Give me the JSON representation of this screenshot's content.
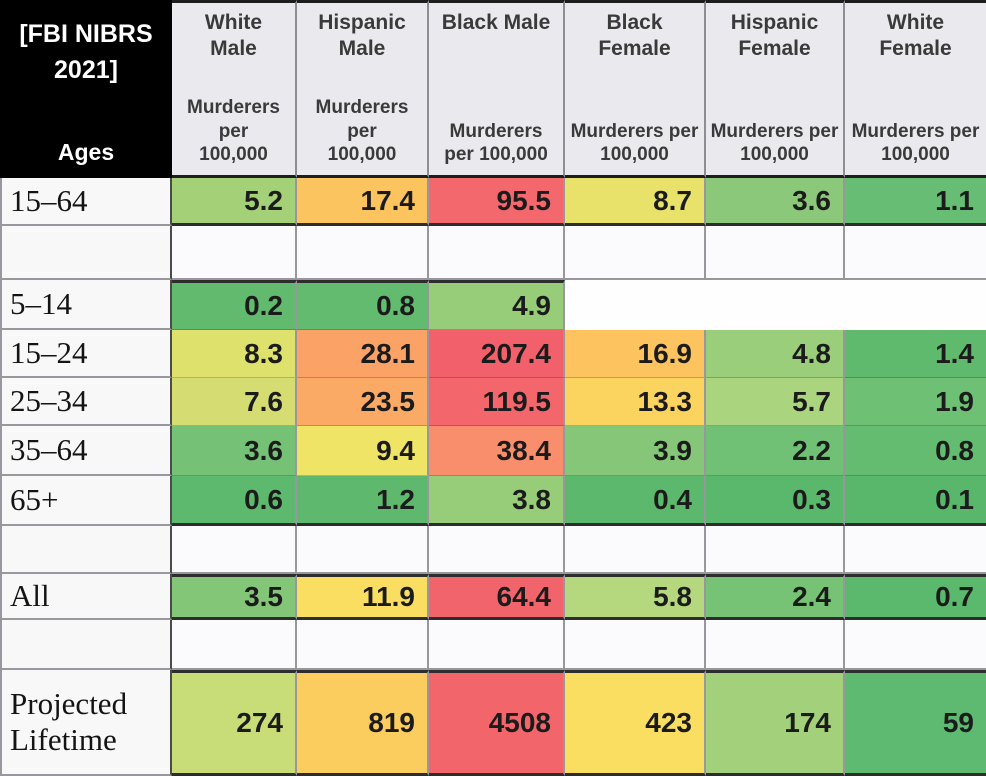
{
  "colors": {
    "corner_bg": "#000000",
    "corner_text": "#ffffff",
    "header_bg": "#eaeaee",
    "grid_line": "#97979d",
    "dark_divider": "#2d2d2d",
    "scale_green": "#5db96d",
    "scale_yellow": "#fade61",
    "scale_orange": "#fba367",
    "scale_red": "#f2606b"
  },
  "chart_data": {
    "type": "table",
    "title": "[FBI NIBRS 2021]",
    "row_header_label": "Ages",
    "unit_label": "Murderers per 100,000",
    "columns": [
      {
        "label": "White Male",
        "unit": "Murderers per 100,000"
      },
      {
        "label": "Hispanic Male",
        "unit": "Murderers per 100,000"
      },
      {
        "label": "Black Male",
        "unit": "Murderers per 100,000"
      },
      {
        "label": "Black Female",
        "unit": "Murderers per 100,000"
      },
      {
        "label": "Hispanic Female",
        "unit": "Murderers per 100,000"
      },
      {
        "label": "White Female",
        "unit": "Murderers per 100,000"
      }
    ],
    "rows": [
      {
        "type": "data",
        "label": "15–64",
        "values": [
          "5.2",
          "17.4",
          "95.5",
          "8.7",
          "3.6",
          "1.1"
        ],
        "colors": [
          "#a4d077",
          "#fcc45e",
          "#f2686c",
          "#e9e26a",
          "#8bc87a",
          "#67bd73"
        ]
      },
      {
        "type": "spacer",
        "label": ""
      },
      {
        "type": "data",
        "label": "5–14",
        "values": [
          "0.2",
          "0.8",
          "4.9",
          null,
          null,
          null
        ],
        "colors": [
          "#61ba6e",
          "#62bb6f",
          "#97cc79",
          null,
          null,
          null
        ]
      },
      {
        "type": "data",
        "label": "15–24",
        "values": [
          "8.3",
          "28.1",
          "207.4",
          "16.9",
          "4.8",
          "1.4"
        ],
        "colors": [
          "#dfe16d",
          "#fba367",
          "#f2606b",
          "#fcc35e",
          "#9bce7a",
          "#60ba6e"
        ]
      },
      {
        "type": "data",
        "label": "25–34",
        "values": [
          "7.6",
          "23.5",
          "119.5",
          "13.3",
          "5.7",
          "1.9"
        ],
        "colors": [
          "#d5dd72",
          "#fbaa66",
          "#f2666c",
          "#fbd45f",
          "#aad47d",
          "#6ec074"
        ]
      },
      {
        "type": "data",
        "label": "35–64",
        "values": [
          "3.6",
          "9.4",
          "38.4",
          "3.9",
          "2.2",
          "0.8"
        ],
        "colors": [
          "#75c276",
          "#f0e467",
          "#f98e6d",
          "#85c678",
          "#70c175",
          "#64bc70"
        ]
      },
      {
        "type": "data",
        "label": "65+",
        "values": [
          "0.6",
          "1.2",
          "3.8",
          "0.4",
          "0.3",
          "0.1"
        ],
        "colors": [
          "#5db96d",
          "#5eb96e",
          "#97cc78",
          "#5bb86c",
          "#5ab86c",
          "#59b76b"
        ]
      },
      {
        "type": "spacer",
        "label": ""
      },
      {
        "type": "data",
        "label": "All",
        "values": [
          "3.5",
          "11.9",
          "64.4",
          "5.8",
          "2.4",
          "0.7"
        ],
        "colors": [
          "#84c678",
          "#fade61",
          "#f2646b",
          "#b5d77d",
          "#77c376",
          "#5bb96d"
        ]
      },
      {
        "type": "spacer",
        "label": ""
      },
      {
        "type": "data",
        "label": "Projected Lifetime",
        "values": [
          "274",
          "819",
          "4508",
          "423",
          "174",
          "59"
        ],
        "colors": [
          "#c8dc78",
          "#fbcc5e",
          "#f2666b",
          "#fade61",
          "#a2d07b",
          "#5eba70"
        ]
      }
    ]
  }
}
